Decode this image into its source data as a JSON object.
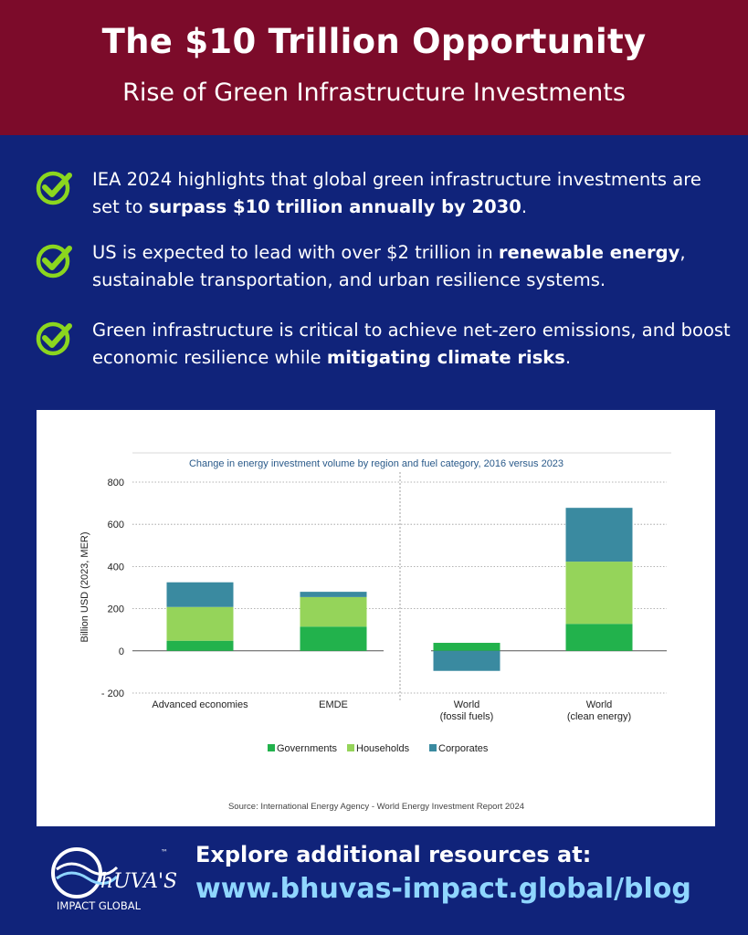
{
  "header": {
    "title": "The $10 Trillion Opportunity",
    "subtitle": "Rise of Green Infrastructure Investments"
  },
  "bullets": [
    {
      "pre": "IEA 2024 highlights that global green infrastructure investments are set to ",
      "bold": "surpass $10 trillion annually by 2030",
      "post": "."
    },
    {
      "pre": "US is expected to lead with over $2 trillion in ",
      "bold": "renewable energy",
      "post": ", sustainable transportation, and urban resilience systems."
    },
    {
      "pre": "Green infrastructure is critical to achieve net-zero emissions, and boost economic resilience while ",
      "bold": "mitigating climate risks",
      "post": "."
    }
  ],
  "chart_data": {
    "type": "bar",
    "stacked": true,
    "title": "Change in energy investment volume by region and fuel category, 2016 versus 2023",
    "ylabel": "Billion USD (2023, MER)",
    "xlabel": "",
    "ylim": [
      -200,
      800
    ],
    "yticks": [
      800,
      600,
      400,
      200,
      0,
      -200
    ],
    "ytick_labels": [
      "800",
      "600",
      "400",
      "200",
      "0",
      "- 200"
    ],
    "grid": true,
    "categories": [
      "Advanced economies",
      "EMDE",
      "World\n(fossil fuels)",
      "World\n(clean energy)"
    ],
    "category_lines": [
      [
        "Advanced economies"
      ],
      [
        "EMDE"
      ],
      [
        "World",
        "(fossil fuels)"
      ],
      [
        "World",
        "(clean energy)"
      ]
    ],
    "series": [
      {
        "name": "Governments",
        "color": "#22b24c",
        "values": [
          48,
          115,
          38,
          128
        ]
      },
      {
        "name": "Households",
        "color": "#95d45a",
        "values": [
          160,
          140,
          0,
          295
        ]
      },
      {
        "name": "Corporates",
        "color": "#3a8aa0",
        "values": [
          117,
          25,
          -95,
          255
        ]
      }
    ],
    "legend_position": "bottom",
    "source": "Source: International Energy Agency - World Energy Investment Report 2024"
  },
  "footer": {
    "label": "Explore additional resources at:",
    "url": "www.bhuvas-impact.global/blog",
    "logo_line1": "hUVA'S",
    "logo_line2": "IMPACT GLOBAL",
    "logo_tm": "™"
  },
  "colors": {
    "banner": "#7c0b2a",
    "background": "#10237a",
    "check": "#8bd61f",
    "url": "#8fd6ff"
  }
}
